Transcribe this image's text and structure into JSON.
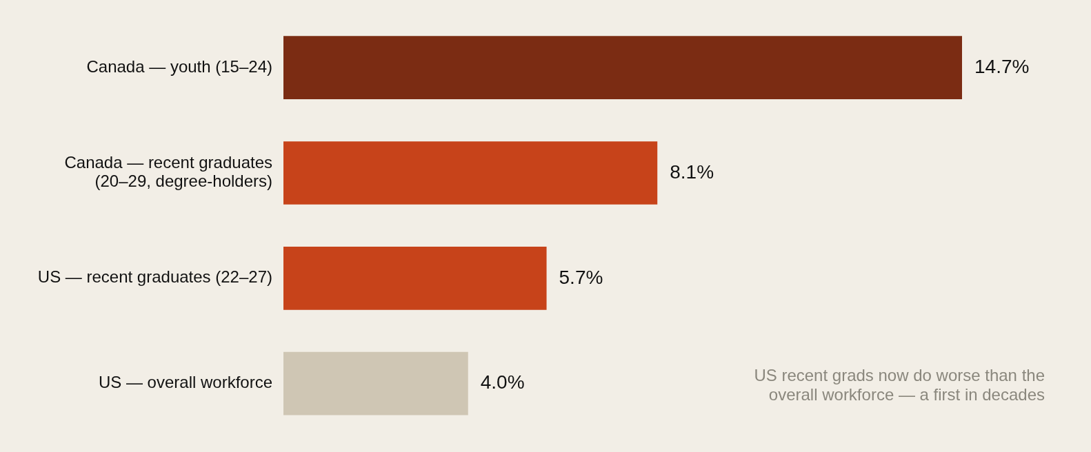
{
  "chart_data": {
    "type": "bar",
    "orientation": "horizontal",
    "categories": [
      "Canada — youth (15–24)",
      "Canada — recent graduates\n(20–29, degree-holders)",
      "US — recent graduates (22–27)",
      "US — overall workforce"
    ],
    "values": [
      14.7,
      8.1,
      5.7,
      4.0
    ],
    "colors": [
      "#7b2c13",
      "#c7431a",
      "#c7431a",
      "#cfc6b4"
    ],
    "value_labels": [
      "14.7%",
      "8.1%",
      "5.7%",
      "4.0%"
    ],
    "annotations": [
      "US recent grads now do worse than the overall workforce — a first in decades"
    ],
    "data_labels": false
  }
}
